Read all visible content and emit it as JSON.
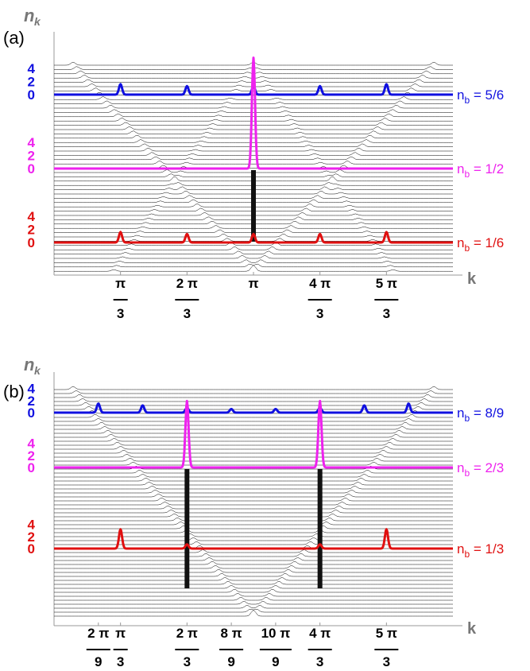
{
  "chart_data": [
    {
      "type": "line",
      "panel_label": "(a)",
      "ylabel_main": "n",
      "ylabel_sub": "k",
      "xlabel": "k",
      "xlim": [
        0,
        6.2832
      ],
      "x_ticks": [
        {
          "value": 1.0472,
          "num": "π",
          "den": "3"
        },
        {
          "value": 2.0944,
          "num": "2 π",
          "den": "3"
        },
        {
          "value": 3.1416,
          "num": "π",
          "den": ""
        },
        {
          "value": 4.1888,
          "num": "4 π",
          "den": "3"
        },
        {
          "value": 5.236,
          "num": "5 π",
          "den": "3"
        }
      ],
      "series": [
        {
          "name": "n_b = 5/6",
          "label_main": "n",
          "label_sub": "b",
          "label_value": " = 5/6",
          "color": "#1010e0",
          "offset_ticks": [
            "4",
            "2",
            "0"
          ],
          "peaks": [
            {
              "x": 1.0472,
              "height": 1.6
            },
            {
              "x": 2.0944,
              "height": 1.3
            },
            {
              "x": 3.1416,
              "height": 1.3
            },
            {
              "x": 4.1888,
              "height": 1.3
            },
            {
              "x": 5.236,
              "height": 1.6
            }
          ]
        },
        {
          "name": "n_b = 1/2",
          "label_main": "n",
          "label_sub": "b",
          "label_value": " = 1/2",
          "color": "#ee22ee",
          "offset_ticks": [
            "4",
            "2",
            "0"
          ],
          "peaks": [
            {
              "x": 3.1416,
              "height": 17
            }
          ]
        },
        {
          "name": "n_b = 1/6",
          "label_main": "n",
          "label_sub": "b",
          "label_value": " = 1/6",
          "color": "#e01010",
          "offset_ticks": [
            "4",
            "2",
            "0"
          ],
          "peaks": [
            {
              "x": 1.0472,
              "height": 1.6
            },
            {
              "x": 2.0944,
              "height": 1.3
            },
            {
              "x": 3.1416,
              "height": 1.3
            },
            {
              "x": 4.1888,
              "height": 1.3
            },
            {
              "x": 5.236,
              "height": 1.6
            }
          ]
        }
      ]
    },
    {
      "type": "line",
      "panel_label": "(b)",
      "ylabel_main": "n",
      "ylabel_sub": "k",
      "xlabel": "k",
      "xlim": [
        0,
        6.2832
      ],
      "x_ticks": [
        {
          "value": 0.6981,
          "num": "2 π",
          "den": "9"
        },
        {
          "value": 1.0472,
          "num": "π",
          "den": "3"
        },
        {
          "value": 2.0944,
          "num": "2 π",
          "den": "3"
        },
        {
          "value": 2.7925,
          "num": "8 π",
          "den": "9"
        },
        {
          "value": 3.4907,
          "num": "10 π",
          "den": "9"
        },
        {
          "value": 4.1888,
          "num": "4 π",
          "den": "3"
        },
        {
          "value": 5.236,
          "num": "5 π",
          "den": "3"
        }
      ],
      "series": [
        {
          "name": "n_b = 8/9",
          "label_main": "n",
          "label_sub": "b",
          "label_value": " = 8/9",
          "color": "#1010e0",
          "offset_ticks": [
            "4",
            "2",
            "0"
          ],
          "peaks": [
            {
              "x": 0.6981,
              "height": 1.5
            },
            {
              "x": 1.3963,
              "height": 1.2
            },
            {
              "x": 2.0944,
              "height": 0.8
            },
            {
              "x": 2.7925,
              "height": 0.6
            },
            {
              "x": 3.4907,
              "height": 0.6
            },
            {
              "x": 4.1888,
              "height": 0.8
            },
            {
              "x": 4.8869,
              "height": 1.2
            },
            {
              "x": 5.5851,
              "height": 1.5
            }
          ]
        },
        {
          "name": "n_b = 2/3",
          "label_main": "n",
          "label_sub": "b",
          "label_value": " = 2/3",
          "color": "#ee22ee",
          "offset_ticks": [
            "4",
            "2",
            "0"
          ],
          "peaks": [
            {
              "x": 2.0944,
              "height": 11
            },
            {
              "x": 4.1888,
              "height": 11
            }
          ]
        },
        {
          "name": "n_b = 1/3",
          "label_main": "n",
          "label_sub": "b",
          "label_value": " = 1/3",
          "color": "#e01010",
          "offset_ticks": [
            "4",
            "2",
            "0"
          ],
          "peaks": [
            {
              "x": 1.0472,
              "height": 3.2
            },
            {
              "x": 2.0944,
              "height": 0.7
            },
            {
              "x": 4.1888,
              "height": 0.7
            },
            {
              "x": 5.236,
              "height": 3.2
            }
          ]
        }
      ]
    }
  ]
}
